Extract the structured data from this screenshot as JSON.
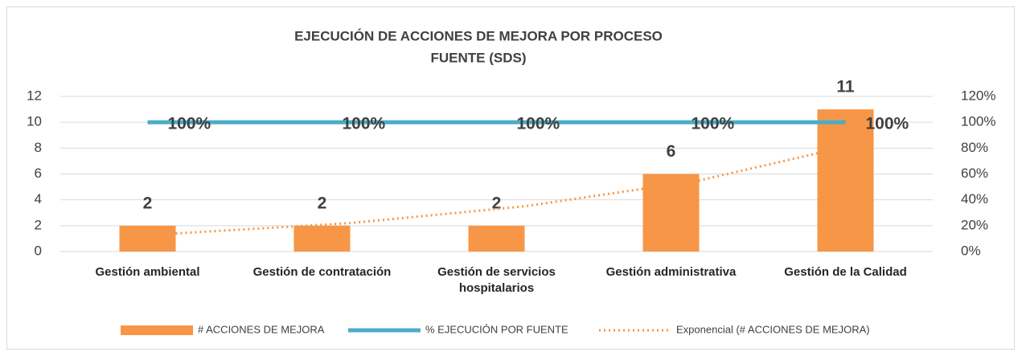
{
  "chart_data": {
    "type": "combo",
    "title": "EJECUCIÓN DE ACCIONES DE MEJORA  POR PROCESO",
    "subtitle": "FUENTE (SDS)",
    "categories": [
      "Gestión ambiental",
      "Gestión de contratación",
      "Gestión de servicios hospitalarios",
      "Gestión administrativa",
      "Gestión de la Calidad"
    ],
    "series": [
      {
        "name": "# ACCIONES DE MEJORA",
        "type": "bar",
        "color": "#f79646",
        "values": [
          2,
          2,
          2,
          6,
          11
        ]
      },
      {
        "name": "% EJECUCIÓN  POR FUENTE",
        "type": "line",
        "axis": "y2",
        "color": "#4bacc6",
        "values": [
          100,
          100,
          100,
          100,
          100
        ],
        "value_labels": [
          "100%",
          "100%",
          "100%",
          "100%",
          "100%"
        ]
      },
      {
        "name": "Exponencial (# ACCIONES DE MEJORA)",
        "type": "trendline",
        "style": "dotted",
        "color": "#f79646",
        "values": [
          1.4,
          2.2,
          3.5,
          5.5,
          8.6
        ]
      }
    ],
    "ylim": [
      0,
      12
    ],
    "yticks": [
      0,
      2,
      4,
      6,
      8,
      10,
      12
    ],
    "y2lim": [
      0,
      120
    ],
    "y2ticks": [
      {
        "value": 0,
        "label": "0%"
      },
      {
        "value": 20,
        "label": "20%"
      },
      {
        "value": 40,
        "label": "40%"
      },
      {
        "value": 60,
        "label": "60%"
      },
      {
        "value": 80,
        "label": "80%"
      },
      {
        "value": 100,
        "label": "100%"
      },
      {
        "value": 120,
        "label": "120%"
      }
    ],
    "grid": true,
    "legend": "bottom"
  }
}
